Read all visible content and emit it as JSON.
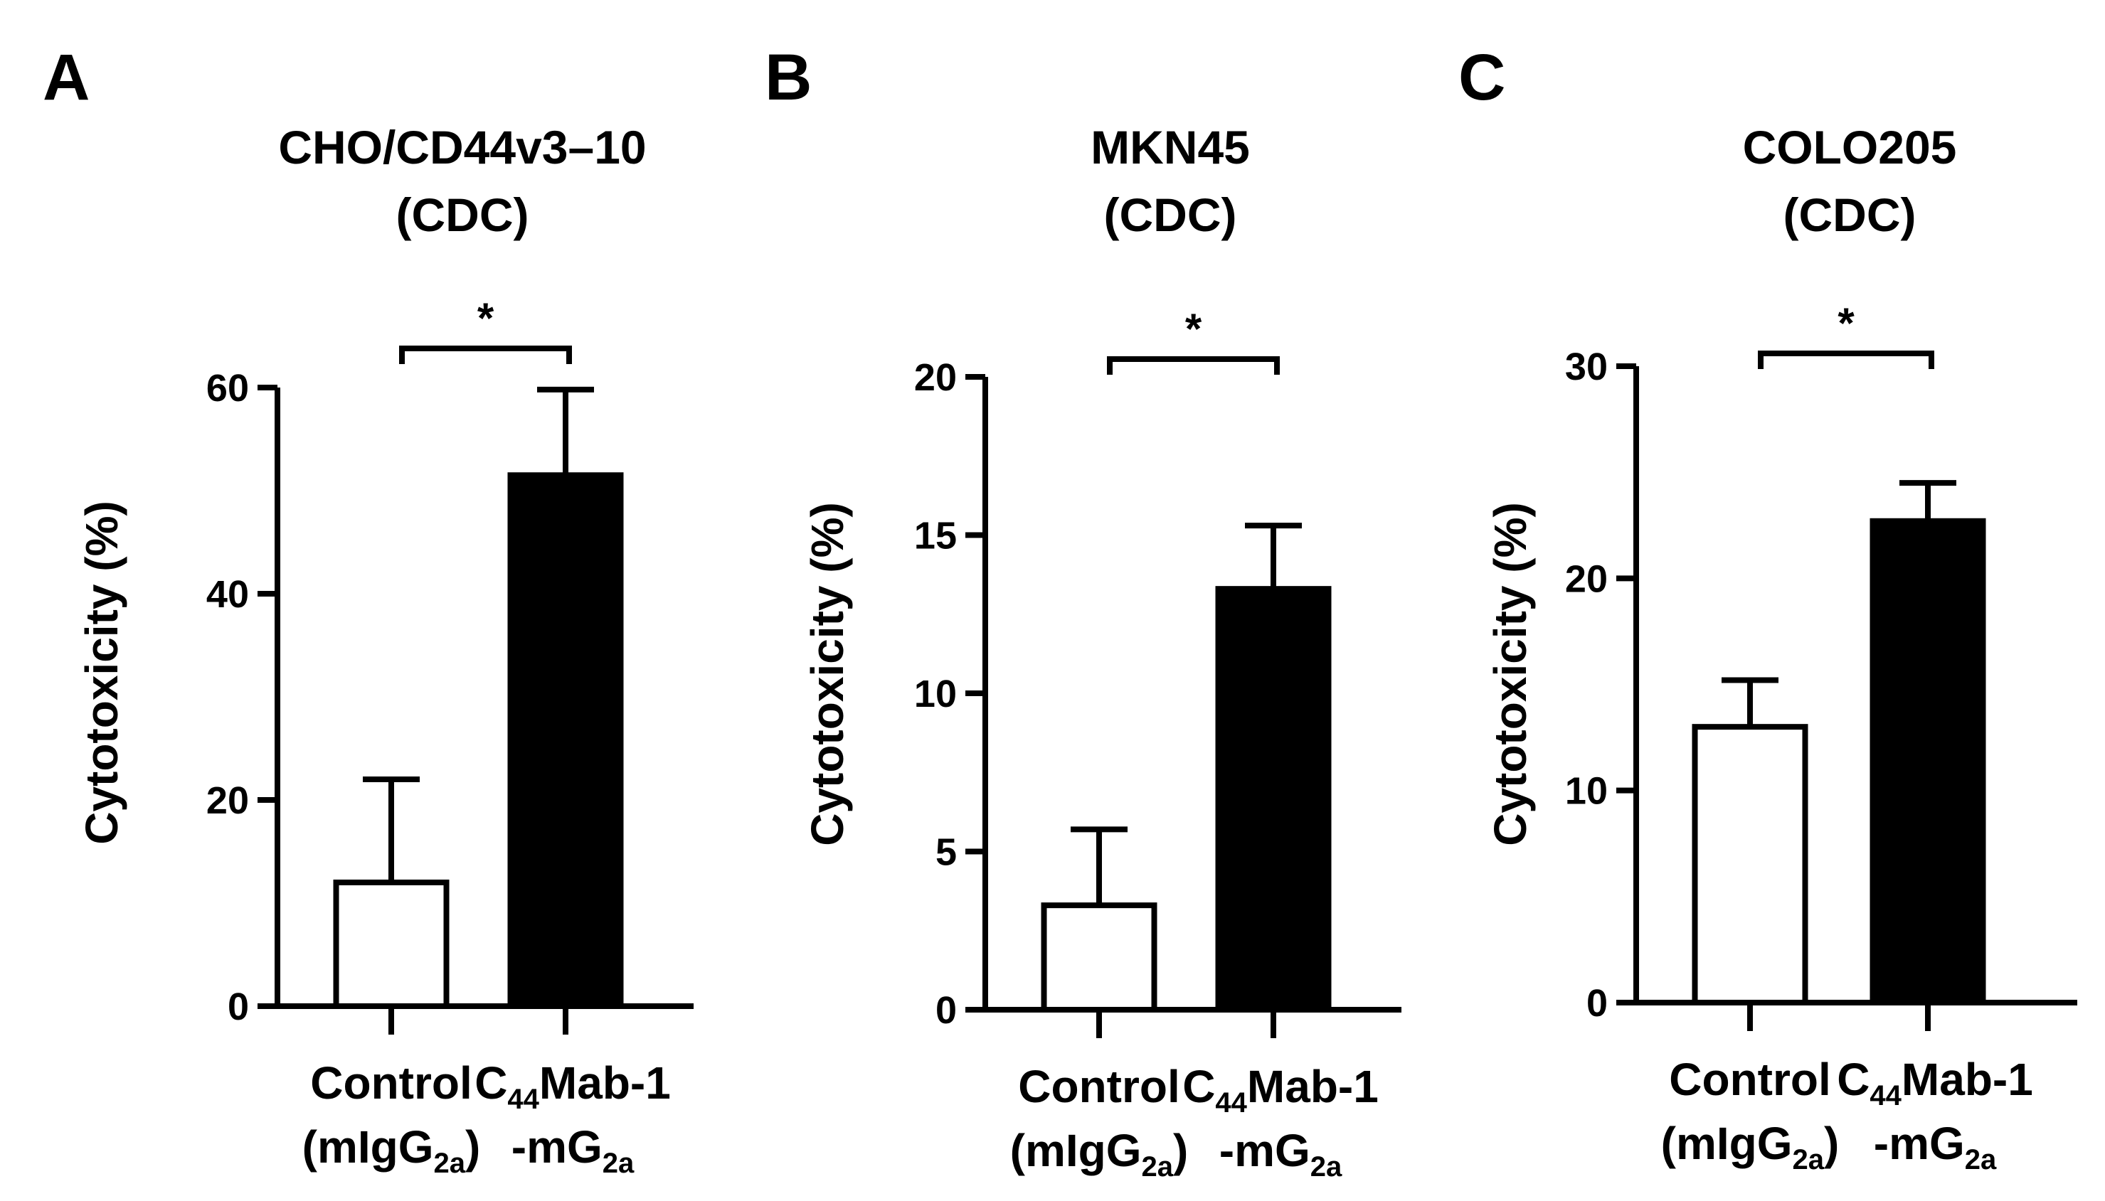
{
  "panels": [
    {
      "letter": "A",
      "title_lines": [
        "CHO/CD44v3–10",
        "(CDC)"
      ],
      "chart_data": {
        "type": "bar",
        "categories": [
          "Control (mIgG2a)",
          "C44Mab-1-mG2a"
        ],
        "values": [
          12,
          51.5
        ],
        "errors": [
          10,
          8.3
        ],
        "ylabel": "Cytotoxicity (%)",
        "ylim": [
          0,
          60
        ],
        "yticks": [
          0,
          20,
          40,
          60
        ],
        "bar_colors": [
          "#ffffff",
          "#000000"
        ],
        "significance": "*"
      }
    },
    {
      "letter": "B",
      "title_lines": [
        "MKN45",
        "(CDC)"
      ],
      "chart_data": {
        "type": "bar",
        "categories": [
          "Control (mIgG2a)",
          "C44Mab-1-mG2a"
        ],
        "values": [
          3.3,
          13.3
        ],
        "errors": [
          2.4,
          2.0
        ],
        "ylabel": "Cytotoxicity (%)",
        "ylim": [
          0,
          20
        ],
        "yticks": [
          0,
          5,
          10,
          15,
          20
        ],
        "bar_colors": [
          "#ffffff",
          "#000000"
        ],
        "significance": "*"
      }
    },
    {
      "letter": "C",
      "title_lines": [
        "COLO205",
        "(CDC)"
      ],
      "chart_data": {
        "type": "bar",
        "categories": [
          "Control (mIgG2a)",
          "C44Mab-1-mG2a"
        ],
        "values": [
          13,
          22.7
        ],
        "errors": [
          2.2,
          1.8
        ],
        "ylabel": "Cytotoxicity (%)",
        "ylim": [
          0,
          30
        ],
        "yticks": [
          0,
          10,
          20,
          30
        ],
        "bar_colors": [
          "#ffffff",
          "#000000"
        ],
        "significance": "*"
      }
    }
  ],
  "xlabels": {
    "control_line1": "Control",
    "control_line2_pre": "(mIgG",
    "control_line2_sub": "2a",
    "control_line2_post": ")",
    "treat_line1_pre": "C",
    "treat_line1_sub": "44",
    "treat_line1_post": "Mab-1",
    "treat_line2_pre": "-mG",
    "treat_line2_sub": "2a"
  }
}
